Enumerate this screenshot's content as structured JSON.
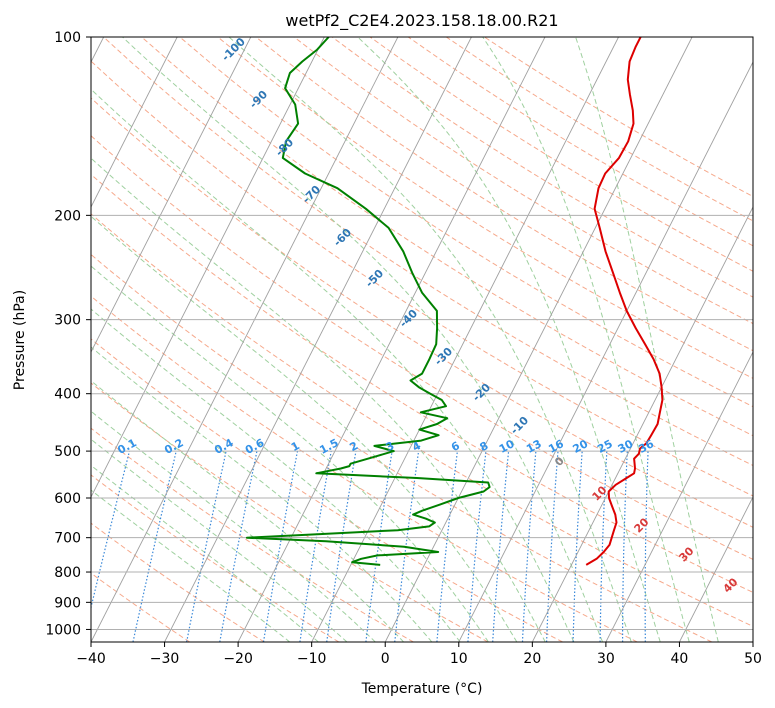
{
  "chart_data": {
    "type": "line",
    "title": "wetPf2_C2E4.2023.158.18.00.R21",
    "xlabel": "Temperature (°C)",
    "ylabel": "Pressure (hPa)",
    "xlim": [
      -40,
      50
    ],
    "ylim": [
      1050,
      100
    ],
    "x_ticks": [
      -40,
      -30,
      -20,
      -10,
      0,
      10,
      20,
      30,
      40,
      50
    ],
    "y_ticks": [
      100,
      200,
      300,
      400,
      500,
      600,
      700,
      800,
      900,
      1000
    ],
    "y_scale": "log",
    "skew": true,
    "grid": true,
    "series": [
      {
        "color": "#dd0000",
        "p": [
          778,
          760,
          740,
          720,
          700,
          680,
          660,
          640,
          620,
          600,
          585,
          570,
          555,
          545,
          535,
          525,
          515,
          505,
          495,
          485,
          470,
          450,
          430,
          410,
          390,
          370,
          350,
          330,
          310,
          290,
          270,
          250,
          230,
          210,
          195,
          180,
          170,
          160,
          150,
          140,
          133,
          125,
          118,
          110,
          104,
          100
        ],
        "t": [
          22,
          23,
          23.5,
          23.8,
          23.6,
          23.4,
          23.2,
          22.5,
          21.5,
          20.5,
          20,
          20.5,
          21.5,
          22.2,
          22,
          21.6,
          21.2,
          21.5,
          21.3,
          21.8,
          21.9,
          22,
          21.5,
          21,
          20,
          18.8,
          17,
          14.8,
          12.4,
          10,
          7.8,
          5.5,
          3,
          0.6,
          -1.4,
          -2.3,
          -2.4,
          -1.6,
          -1.5,
          -2,
          -3,
          -4.5,
          -5.8,
          -6.8,
          -7,
          -7
        ]
      },
      {
        "color": "#008000",
        "p": [
          778,
          770,
          760,
          750,
          740,
          725,
          710,
          700,
          690,
          680,
          670,
          660,
          650,
          640,
          630,
          615,
          600,
          585,
          575,
          565,
          555,
          545,
          535,
          530,
          525,
          520,
          510,
          500,
          490,
          480,
          470,
          460,
          450,
          440,
          430,
          420,
          410,
          400,
          390,
          380,
          370,
          350,
          330,
          310,
          290,
          270,
          250,
          230,
          210,
          195,
          180,
          170,
          160,
          150,
          140,
          130,
          122,
          115,
          110,
          105,
          100
        ],
        "t": [
          -6,
          -10,
          -9,
          -7,
          1,
          -4,
          -15,
          -26,
          -16,
          -6,
          -2,
          -1.5,
          -3,
          -5,
          -4,
          -2,
          0,
          3,
          3.5,
          3,
          -7,
          -21,
          -18,
          -17,
          -17,
          -16,
          -14,
          -12,
          -15,
          -9,
          -7,
          -10,
          -8,
          -7,
          -11,
          -8,
          -9,
          -11,
          -13,
          -14.6,
          -13.5,
          -13.5,
          -13.6,
          -14.6,
          -15.8,
          -19.1,
          -21.8,
          -24.5,
          -28.1,
          -32.5,
          -37.8,
          -43.2,
          -47.3,
          -48,
          -47.6,
          -49.3,
          -51.8,
          -52.2,
          -51.3,
          -50.1,
          -49.4
        ]
      }
    ],
    "mixing_ratio_labels": [
      "0.1",
      "0.2",
      "0.4",
      "0.6",
      "1",
      "1.5",
      "2",
      "3",
      "4",
      "6",
      "8",
      "10",
      "13",
      "16",
      "20",
      "25",
      "30",
      "36"
    ],
    "moist_adiabat_labels": [
      "-100",
      "-90",
      "-80",
      "-70",
      "-60",
      "-50",
      "-40",
      "-30",
      "-20",
      "-10",
      "0",
      "10",
      "20",
      "30",
      "40"
    ],
    "colors": {
      "temperature": "#dd0000",
      "dewpoint": "#008000",
      "isotherm": "#a0a0a0",
      "dry_adiabat": "#f6a98c",
      "moist_adiabat": "#9fd09f",
      "mixing_ratio": "#3a88d8",
      "label_cold": "#2f77b5",
      "label_mixing": "#3392e8",
      "label_zero": "#888888",
      "label_warm": "#d83a3a"
    }
  }
}
